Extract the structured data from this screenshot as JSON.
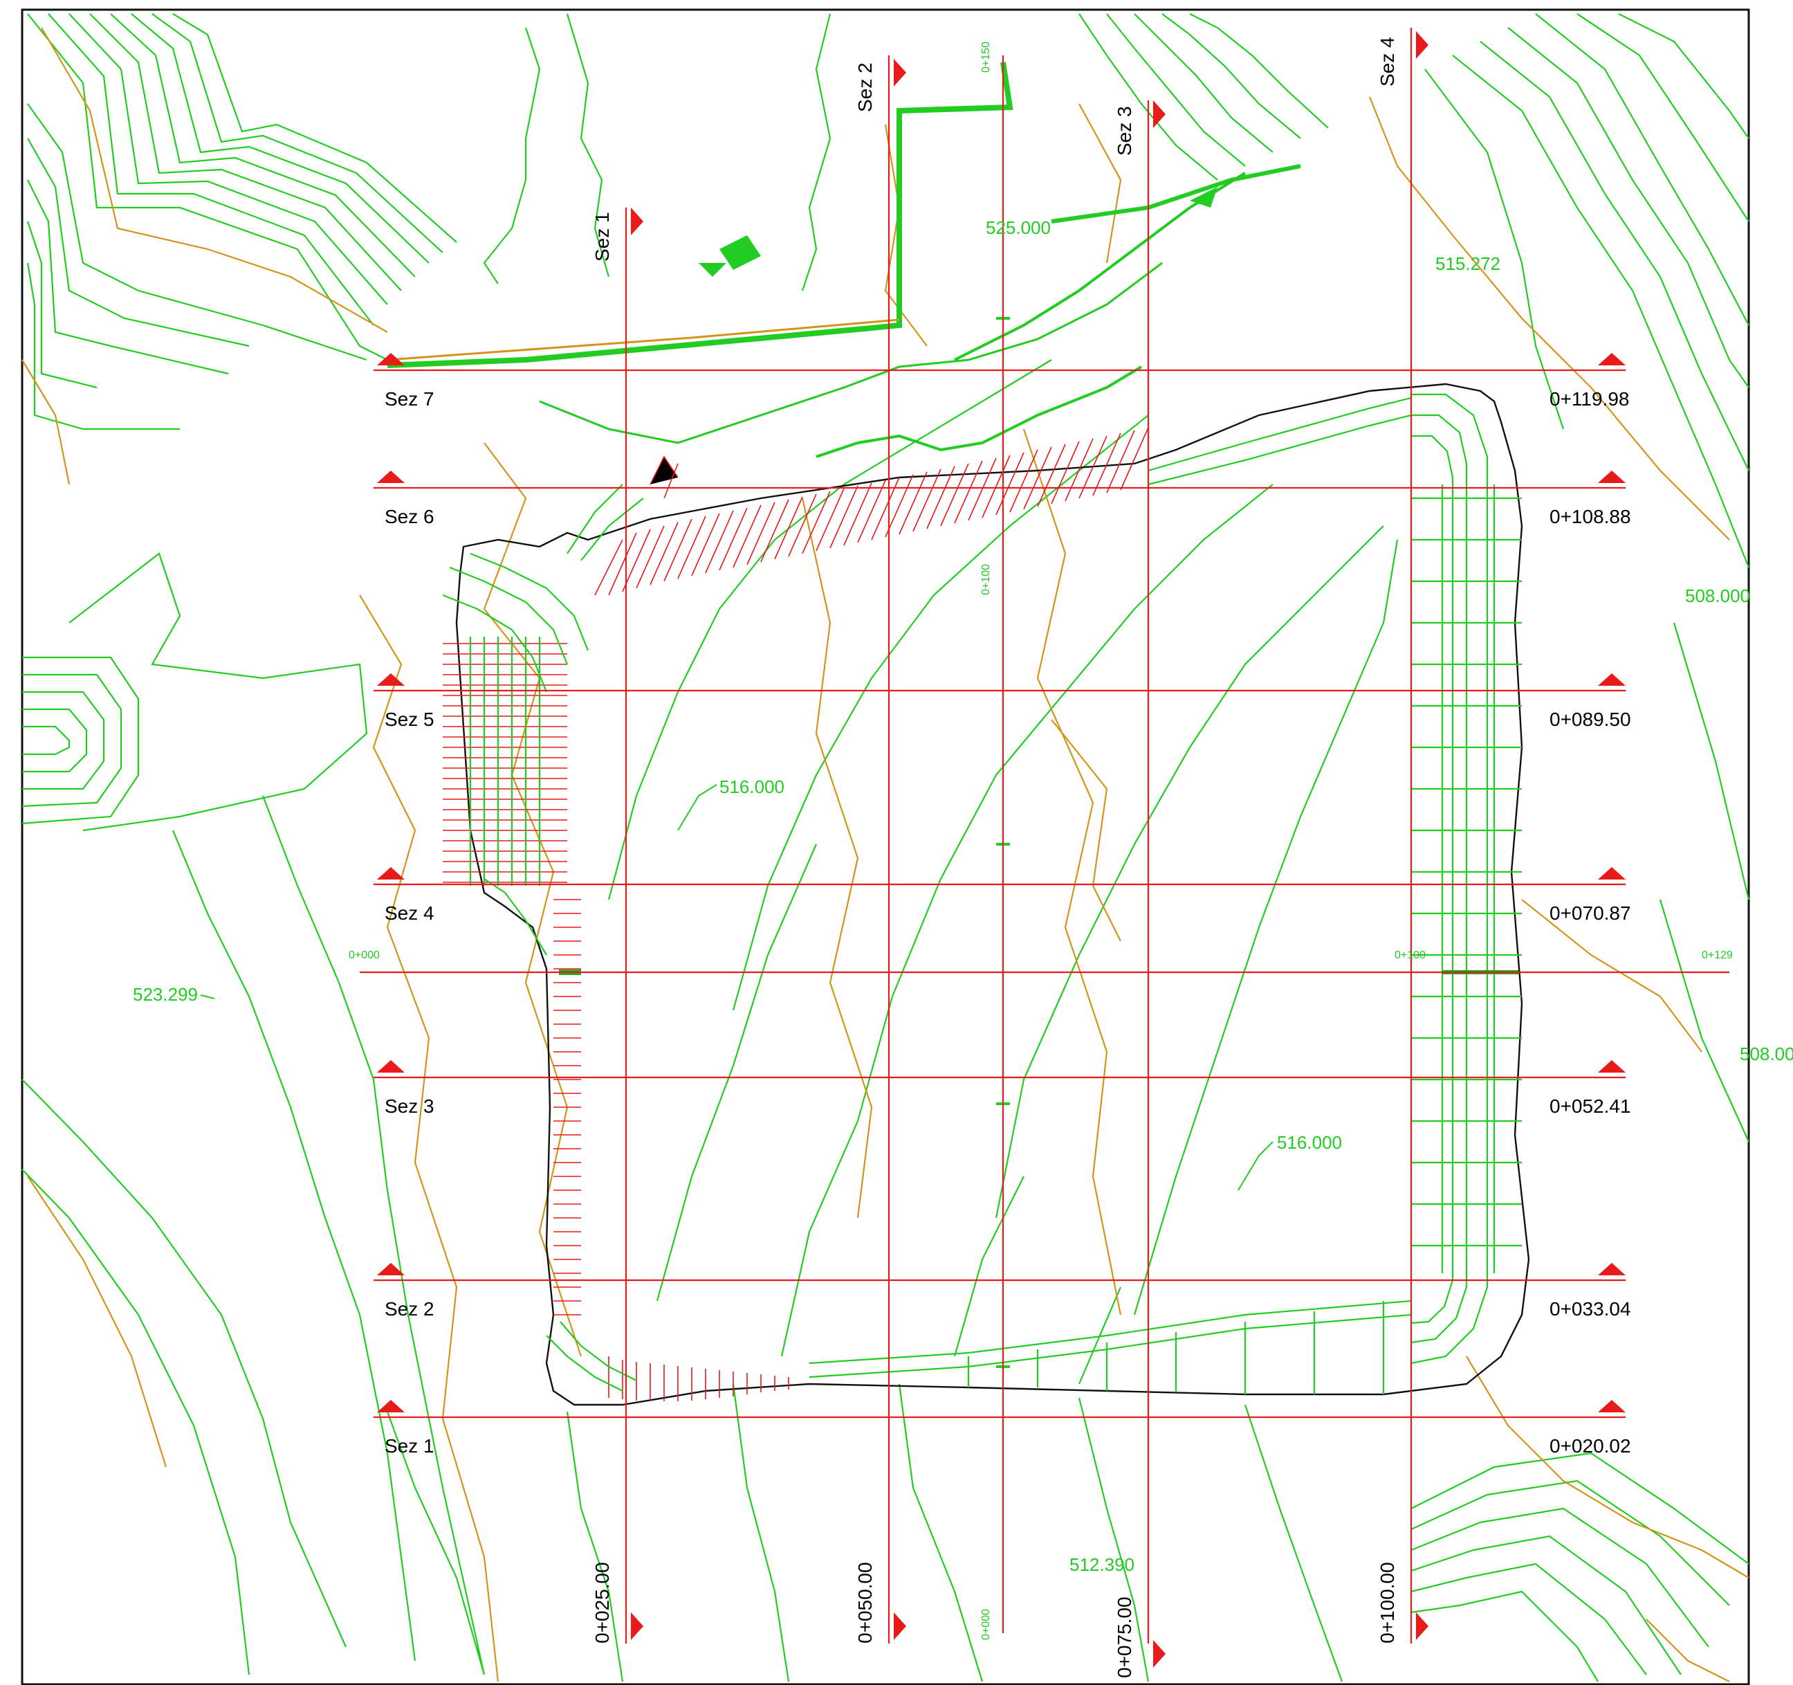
{
  "colors": {
    "contour_green": "#22cc22",
    "contour_orange": "#d4941a",
    "section_red": "#e81a1a",
    "boundary_black": "#111111",
    "background": "#ffffff"
  },
  "horizontal_sections": [
    {
      "label": "Sez 7",
      "chainage": "0+119.98"
    },
    {
      "label": "Sez 6",
      "chainage": "0+108.88"
    },
    {
      "label": "Sez 5",
      "chainage": "0+089.50"
    },
    {
      "label": "Sez 4",
      "chainage": "0+070.87"
    },
    {
      "label": "Sez 3",
      "chainage": "0+052.41"
    },
    {
      "label": "Sez 2",
      "chainage": "0+033.04"
    },
    {
      "label": "Sez 1",
      "chainage": "0+020.02"
    }
  ],
  "vertical_sections": [
    {
      "label": "Sez 1",
      "chainage": "0+025.00"
    },
    {
      "label": "Sez 2",
      "chainage": "0+050.00"
    },
    {
      "label": "Sez 3",
      "chainage": "0+075.00"
    },
    {
      "label": "Sez 4",
      "chainage": "0+100.00"
    }
  ],
  "axis_ticks": {
    "h_start": "0+000",
    "h_mid": "0+100",
    "h_end": "0+129",
    "v_start": "0+000",
    "v_mid": "0+100",
    "v_end": "0+150"
  },
  "elevations": [
    "525.000",
    "515.272",
    "508.000",
    "516.000",
    "523.299",
    "508.00",
    "516.000",
    "512.390"
  ]
}
